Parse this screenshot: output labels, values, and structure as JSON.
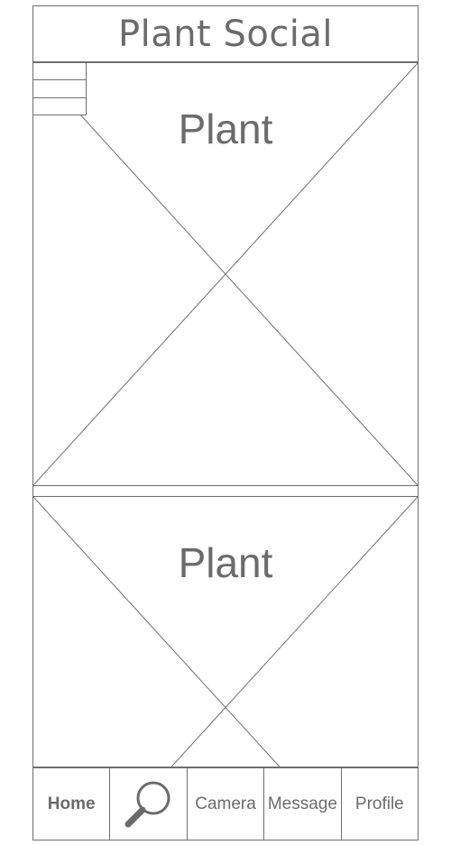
{
  "app": {
    "title": "Plant Social"
  },
  "menu": {
    "icon": "hamburger-menu-icon"
  },
  "feed": {
    "posts": [
      {
        "label": "Plant"
      },
      {
        "label": "Plant"
      }
    ]
  },
  "bottom_nav": {
    "items": [
      {
        "label": "Home",
        "active": true
      },
      {
        "label": "",
        "icon": "search-icon"
      },
      {
        "label": "Camera"
      },
      {
        "label": "Message"
      },
      {
        "label": "Profile"
      }
    ]
  }
}
